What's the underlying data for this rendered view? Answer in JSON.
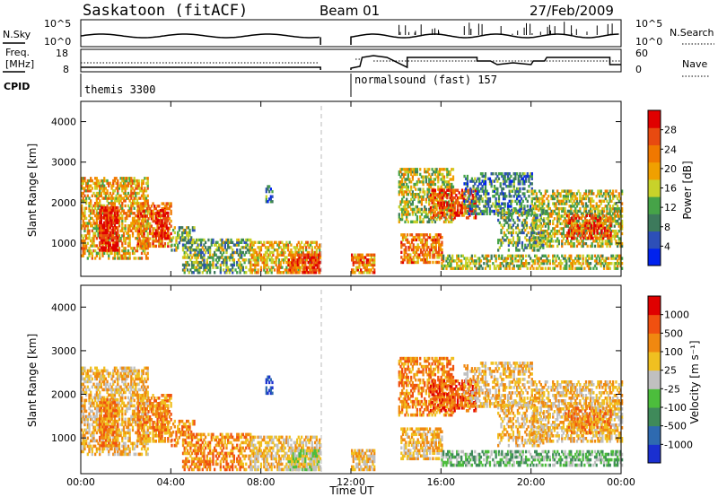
{
  "header": {
    "station": "Saskatoon (fitACF)",
    "beam": "Beam 01",
    "date": "27/Feb/2009"
  },
  "noise_panel": {
    "left_label": "N.Sky",
    "right_label": "N.Search",
    "left_ticks": [
      "10^5",
      "10^0"
    ],
    "right_ticks": [
      "10^5",
      "10^0"
    ]
  },
  "freq_panel": {
    "left_label_line1": "Freq.",
    "left_label_line2": "[MHz]",
    "right_label": "Nave",
    "left_ticks": [
      "18",
      "8"
    ],
    "right_ticks": [
      "60",
      "0"
    ]
  },
  "cpid_panel": {
    "label": "CPID",
    "segments": [
      {
        "name": "themis 3300",
        "start_hour": 0
      },
      {
        "name": "normalsound (fast) 157",
        "start_hour": 12
      }
    ]
  },
  "chart_data": [
    {
      "type": "heatmap",
      "title": "",
      "xlabel": "",
      "ylabel": "Slant Range [km]",
      "xlim_hours": [
        0,
        24
      ],
      "ylim": [
        180,
        4500
      ],
      "yticks": [
        1000,
        2000,
        3000,
        4000
      ],
      "colorbar": {
        "label": "Power [dB]",
        "ticks": [
          "4",
          "8",
          "12",
          "16",
          "20",
          "24",
          "28"
        ],
        "colors": [
          "#0022ee",
          "#2d4fb8",
          "#3d7a5c",
          "#46a348",
          "#c8d22a",
          "#f0a000",
          "#f07800",
          "#e84a10",
          "#e00000"
        ]
      },
      "data_gap_hours": [
        10.65,
        12.0
      ]
    },
    {
      "type": "heatmap",
      "title": "",
      "xlabel": "Time UT",
      "ylabel": "Slant Range [km]",
      "xlim_hours": [
        0,
        24
      ],
      "ylim": [
        180,
        4500
      ],
      "yticks": [
        1000,
        2000,
        3000,
        4000
      ],
      "xtick_labels": [
        "00:00",
        "04:00",
        "08:00",
        "12:00",
        "16:00",
        "20:00",
        "00:00"
      ],
      "colorbar": {
        "label": "Velocity [m s⁻¹]",
        "ticks": [
          "1000",
          "500",
          "100",
          "25",
          "-25",
          "-100",
          "-500",
          "-1000"
        ],
        "colors": [
          "#1a2fd0",
          "#2e6ab0",
          "#3f8a5a",
          "#4cbd3c",
          "#c0c0c0",
          "#f0c020",
          "#f08810",
          "#f05010",
          "#e00000"
        ]
      },
      "data_gap_hours": [
        10.65,
        12.0
      ]
    }
  ],
  "colors": {
    "axis": "#000000",
    "gap_dash": "#bbbbbb"
  }
}
